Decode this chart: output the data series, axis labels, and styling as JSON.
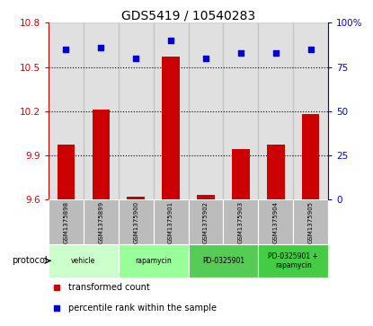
{
  "title": "GDS5419 / 10540283",
  "samples": [
    "GSM1375898",
    "GSM1375899",
    "GSM1375900",
    "GSM1375901",
    "GSM1375902",
    "GSM1375903",
    "GSM1375904",
    "GSM1375905"
  ],
  "red_values": [
    9.97,
    10.21,
    9.62,
    10.57,
    9.63,
    9.94,
    9.97,
    10.18
  ],
  "blue_values": [
    85,
    86,
    80,
    90,
    80,
    83,
    83,
    85
  ],
  "ylim_left": [
    9.6,
    10.8
  ],
  "ylim_right": [
    0,
    100
  ],
  "yticks_left": [
    9.6,
    9.9,
    10.2,
    10.5,
    10.8
  ],
  "yticks_right": [
    0,
    25,
    50,
    75,
    100
  ],
  "ytick_labels_right": [
    "0",
    "25",
    "50",
    "75",
    "100%"
  ],
  "hlines": [
    9.9,
    10.2,
    10.5
  ],
  "bar_color": "#cc0000",
  "scatter_color": "#0000cc",
  "bar_baseline": 9.6,
  "protocols": [
    {
      "label": "vehicle",
      "start": 0,
      "end": 2,
      "color": "#ccffcc"
    },
    {
      "label": "rapamycin",
      "start": 2,
      "end": 4,
      "color": "#99ff99"
    },
    {
      "label": "PD-0325901",
      "start": 4,
      "end": 6,
      "color": "#55cc55"
    },
    {
      "label": "PD-0325901 +\nrapamycin",
      "start": 6,
      "end": 8,
      "color": "#44cc44"
    }
  ],
  "legend_red": "transformed count",
  "legend_blue": "percentile rank within the sample",
  "bar_color_legend": "#cc0000",
  "scatter_color_legend": "#0000cc",
  "bg_sample_color": "#bbbbbb",
  "bar_width": 0.5,
  "title_fontsize": 10
}
